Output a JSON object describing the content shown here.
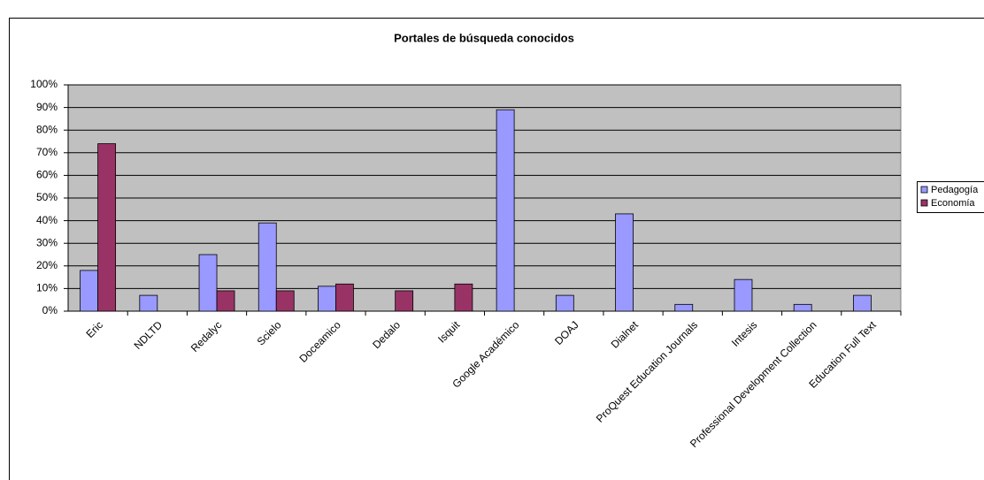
{
  "chart_data": {
    "type": "bar",
    "title": "Portales de búsqueda conocidos",
    "categories": [
      "Eric",
      "NDLTD",
      "Redalyc",
      "Scielo",
      "Doceamico",
      "Dedalo",
      "Isquit",
      "Google Académico",
      "DOAJ",
      "Dialnet",
      "ProQuest Education Journals",
      "Intesis",
      "Professional Development Collection",
      "Education Full Text"
    ],
    "series": [
      {
        "name": "Pedagogía",
        "color": "#9999ff",
        "values": [
          18,
          7,
          25,
          39,
          11,
          0,
          0,
          89,
          7,
          43,
          3,
          14,
          3,
          7
        ]
      },
      {
        "name": "Economía",
        "color": "#993366",
        "values": [
          74,
          0,
          9,
          9,
          12,
          9,
          12,
          0,
          0,
          0,
          0,
          0,
          0,
          0
        ]
      }
    ],
    "ylim": [
      0,
      100
    ],
    "yticks": [
      {
        "value": 0,
        "label": "0%"
      },
      {
        "value": 10,
        "label": "10%"
      },
      {
        "value": 20,
        "label": "20%"
      },
      {
        "value": 30,
        "label": "30%"
      },
      {
        "value": 40,
        "label": "40%"
      },
      {
        "value": 50,
        "label": "50%"
      },
      {
        "value": 60,
        "label": "60%"
      },
      {
        "value": 70,
        "label": "70%"
      },
      {
        "value": 80,
        "label": "80%"
      },
      {
        "value": 90,
        "label": "90%"
      },
      {
        "value": 100,
        "label": "100%"
      }
    ],
    "grid": true,
    "legend": "right",
    "plot_background": "#c0c0c0"
  }
}
